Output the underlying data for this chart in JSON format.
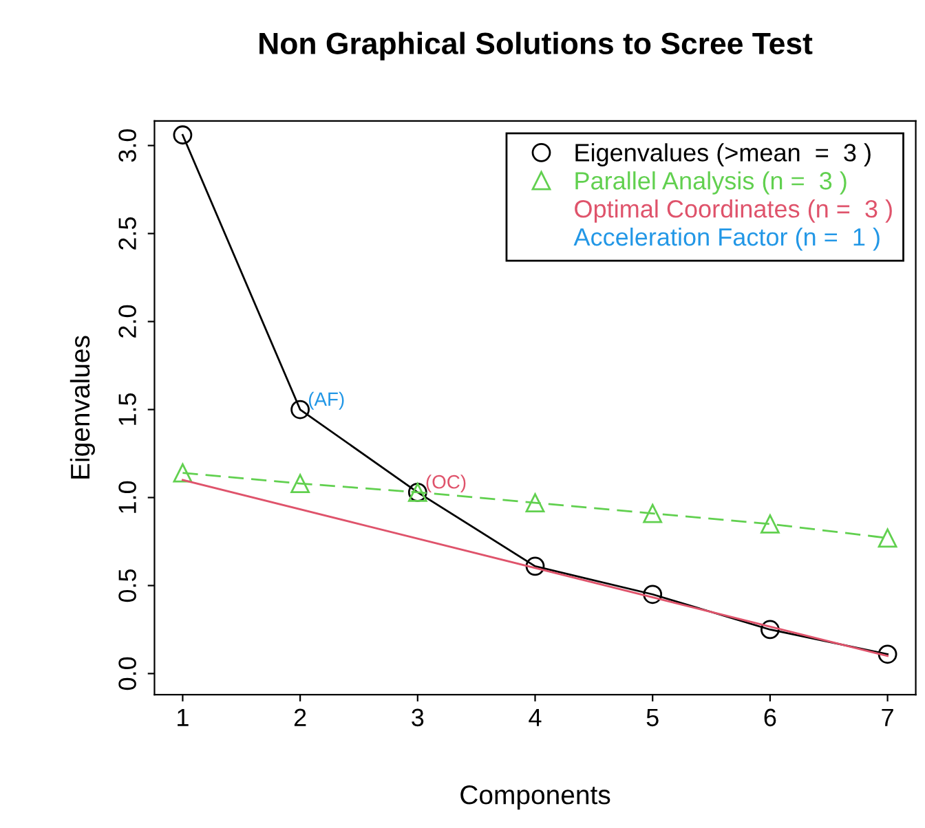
{
  "chart_data": {
    "type": "line",
    "title": "Non Graphical Solutions to Scree Test",
    "xlabel": "Components",
    "ylabel": "Eigenvalues",
    "x": [
      1,
      2,
      3,
      4,
      5,
      6,
      7
    ],
    "series": [
      {
        "name": "Eigenvalues (>mean  =  3 )",
        "color": "#000000",
        "marker": "circle",
        "line_style": "solid",
        "values": [
          3.06,
          1.5,
          1.03,
          0.61,
          0.45,
          0.25,
          0.11
        ]
      },
      {
        "name": "Parallel Analysis (n =  3 )",
        "color": "#61d04f",
        "marker": "triangle",
        "line_style": "dashed",
        "values": [
          1.14,
          1.08,
          1.03,
          0.97,
          0.91,
          0.85,
          0.77
        ]
      },
      {
        "name": "Optimal Coordinates (n =  3 )",
        "color": "#df536b",
        "marker": "none",
        "line_style": "solid",
        "x": [
          1,
          7
        ],
        "values": [
          1.1,
          0.1
        ]
      },
      {
        "name": "Acceleration Factor (n =  1 )",
        "color": "#2297e6",
        "marker": "none",
        "line_style": "solid",
        "values": [
          null,
          null,
          null,
          null,
          null,
          null,
          null
        ]
      }
    ],
    "annotations": [
      {
        "text": "(AF)",
        "x": 2,
        "y": 1.5
      },
      {
        "text": "(OC)",
        "x": 3,
        "y": 1.03
      }
    ],
    "xlim": [
      0.76,
      7.24
    ],
    "xticks": [
      1,
      2,
      3,
      4,
      5,
      6,
      7
    ],
    "ylim": [
      -0.12,
      3.14
    ],
    "yticks": [
      {
        "value": 0,
        "label": "0.0"
      },
      0.5,
      {
        "value": 1,
        "label": "1.0"
      },
      1.5,
      {
        "value": 2,
        "label": "2.0"
      },
      2.5,
      {
        "value": 3,
        "label": "3.0"
      }
    ],
    "legend": "top right",
    "grid": false
  }
}
